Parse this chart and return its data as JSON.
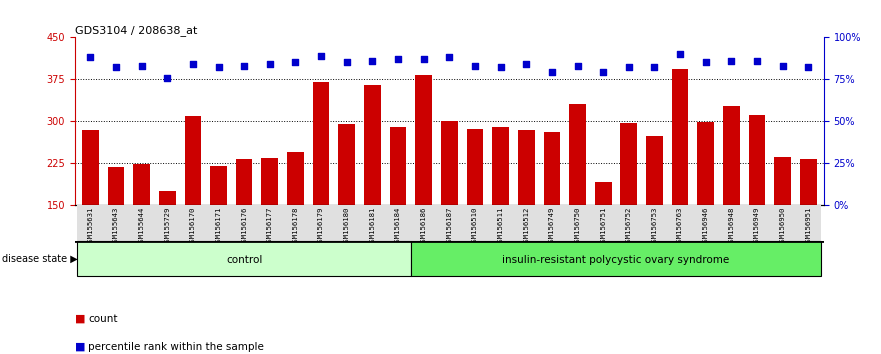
{
  "title": "GDS3104 / 208638_at",
  "samples": [
    "GSM155631",
    "GSM155643",
    "GSM155644",
    "GSM155729",
    "GSM156170",
    "GSM156171",
    "GSM156176",
    "GSM156177",
    "GSM156178",
    "GSM156179",
    "GSM156180",
    "GSM156181",
    "GSM156184",
    "GSM156186",
    "GSM156187",
    "GSM156510",
    "GSM156511",
    "GSM156512",
    "GSM156749",
    "GSM156750",
    "GSM156751",
    "GSM156752",
    "GSM156753",
    "GSM156763",
    "GSM156946",
    "GSM156948",
    "GSM156949",
    "GSM156950",
    "GSM156951"
  ],
  "counts": [
    284,
    218,
    224,
    175,
    310,
    220,
    232,
    234,
    245,
    370,
    295,
    365,
    290,
    382,
    300,
    287,
    290,
    285,
    280,
    330,
    192,
    296,
    273,
    393,
    298,
    328,
    312,
    237,
    232
  ],
  "percentile_ranks": [
    88,
    82,
    83,
    76,
    84,
    82,
    83,
    84,
    85,
    89,
    85,
    86,
    87,
    87,
    88,
    83,
    82,
    84,
    79,
    83,
    79,
    82,
    82,
    90,
    85,
    86,
    86,
    83,
    82
  ],
  "group_labels": [
    "control",
    "insulin-resistant polycystic ovary syndrome"
  ],
  "group_sizes": [
    13,
    16
  ],
  "group_colors": [
    "#ccffcc",
    "#66ee66"
  ],
  "bar_color": "#cc0000",
  "dot_color": "#0000cc",
  "ylim_left": [
    150,
    450
  ],
  "ylim_right": [
    0,
    100
  ],
  "yticks_left": [
    150,
    225,
    300,
    375,
    450
  ],
  "yticks_right": [
    0,
    25,
    50,
    75,
    100
  ],
  "grid_values": [
    225,
    300,
    375
  ],
  "bg_color": "#ffffff",
  "xtick_bg": "#dddddd",
  "label_count": "count",
  "label_percentile": "percentile rank within the sample",
  "disease_state_label": "disease state"
}
